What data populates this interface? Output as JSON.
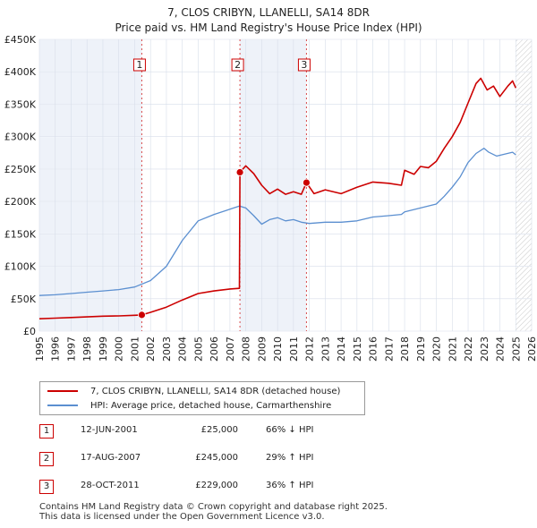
{
  "chart_data": {
    "type": "line",
    "title": "7, CLOS CRIBYN, LLANELLI, SA14 8DR",
    "subtitle": "Price paid vs. HM Land Registry's House Price Index (HPI)",
    "xlabel": "",
    "ylabel": "",
    "xlim": [
      1995,
      2026
    ],
    "ylim": [
      0,
      450000
    ],
    "grid": true,
    "x_ticks": [
      "1995",
      "1996",
      "1997",
      "1998",
      "1999",
      "2000",
      "2001",
      "2002",
      "2003",
      "2004",
      "2005",
      "2006",
      "2007",
      "2008",
      "2009",
      "2010",
      "2011",
      "2012",
      "2013",
      "2014",
      "2015",
      "2016",
      "2017",
      "2018",
      "2019",
      "2020",
      "2021",
      "2022",
      "2023",
      "2024",
      "2025",
      "2026"
    ],
    "y_ticks": [
      {
        "value": 0,
        "label": "£0"
      },
      {
        "value": 50000,
        "label": "£50K"
      },
      {
        "value": 100000,
        "label": "£100K"
      },
      {
        "value": 150000,
        "label": "£150K"
      },
      {
        "value": 200000,
        "label": "£200K"
      },
      {
        "value": 250000,
        "label": "£250K"
      },
      {
        "value": 300000,
        "label": "£300K"
      },
      {
        "value": 350000,
        "label": "£350K"
      },
      {
        "value": 400000,
        "label": "£400K"
      },
      {
        "value": 450000,
        "label": "£450K"
      }
    ],
    "series": [
      {
        "name": "7, CLOS CRIBYN, LLANELLI, SA14 8DR (detached house)",
        "color": "#cc0000",
        "x": [
          1995.0,
          1996.0,
          1997.0,
          1998.0,
          1999.0,
          2000.0,
          2001.0,
          2001.45,
          2002.0,
          2003.0,
          2004.0,
          2005.0,
          2006.0,
          2007.0,
          2007.6,
          2007.63,
          2008.0,
          2008.5,
          2009.0,
          2009.5,
          2010.0,
          2010.5,
          2011.0,
          2011.5,
          2011.82,
          2012.3,
          2013.0,
          2014.0,
          2015.0,
          2016.0,
          2017.0,
          2017.8,
          2018.0,
          2018.6,
          2019.0,
          2019.5,
          2020.0,
          2020.5,
          2021.0,
          2021.5,
          2022.0,
          2022.5,
          2022.8,
          2023.2,
          2023.6,
          2024.0,
          2024.5,
          2024.8,
          2025.0
        ],
        "y": [
          19000,
          20000,
          21000,
          22000,
          23000,
          23500,
          24500,
          25000,
          29000,
          37000,
          48000,
          58000,
          62000,
          65000,
          66000,
          245000,
          255000,
          243000,
          225000,
          212000,
          219000,
          211000,
          215000,
          211000,
          229000,
          212000,
          218000,
          212000,
          222000,
          230000,
          228000,
          225000,
          248000,
          242000,
          254000,
          252000,
          262000,
          282000,
          300000,
          322000,
          352000,
          382000,
          390000,
          372000,
          378000,
          362000,
          378000,
          386000,
          375000
        ]
      },
      {
        "name": "HPI: Average price, detached house, Carmarthenshire",
        "color": "#5b8fd0",
        "x": [
          1995.0,
          1996.0,
          1997.0,
          1998.0,
          1999.0,
          2000.0,
          2001.0,
          2002.0,
          2003.0,
          2004.0,
          2005.0,
          2006.0,
          2007.0,
          2007.6,
          2008.0,
          2008.5,
          2009.0,
          2009.5,
          2010.0,
          2010.5,
          2011.0,
          2011.5,
          2012.0,
          2013.0,
          2014.0,
          2015.0,
          2016.0,
          2017.0,
          2017.8,
          2018.0,
          2019.0,
          2020.0,
          2020.5,
          2021.0,
          2021.5,
          2022.0,
          2022.5,
          2023.0,
          2023.3,
          2023.8,
          2024.3,
          2024.8,
          2025.0
        ],
        "y": [
          55000,
          56000,
          58000,
          60000,
          62000,
          64000,
          68000,
          78000,
          100000,
          140000,
          170000,
          180000,
          188000,
          193000,
          190000,
          178000,
          165000,
          172000,
          175000,
          170000,
          172000,
          168000,
          166000,
          168000,
          168000,
          170000,
          176000,
          178000,
          180000,
          184000,
          190000,
          196000,
          208000,
          222000,
          238000,
          260000,
          274000,
          282000,
          276000,
          270000,
          273000,
          276000,
          272000
        ]
      }
    ],
    "markers": [
      {
        "label": "1",
        "x": 2001.45,
        "y": 25000
      },
      {
        "label": "2",
        "x": 2007.63,
        "y": 245000
      },
      {
        "label": "3",
        "x": 2011.82,
        "y": 229000
      }
    ]
  },
  "legend": {
    "items": [
      {
        "label": "7, CLOS CRIBYN, LLANELLI, SA14 8DR (detached house)",
        "color": "#cc0000"
      },
      {
        "label": "HPI: Average price, detached house, Carmarthenshire",
        "color": "#5b8fd0"
      }
    ]
  },
  "sales": [
    {
      "num": "1",
      "date": "12-JUN-2001",
      "price": "£25,000",
      "hpi": "66% ↓ HPI"
    },
    {
      "num": "2",
      "date": "17-AUG-2007",
      "price": "£245,000",
      "hpi": "29% ↑ HPI"
    },
    {
      "num": "3",
      "date": "28-OCT-2011",
      "price": "£229,000",
      "hpi": "36% ↑ HPI"
    }
  ],
  "footer": {
    "line1": "Contains HM Land Registry data © Crown copyright and database right 2025.",
    "line2": "This data is licensed under the Open Government Licence v3.0."
  }
}
